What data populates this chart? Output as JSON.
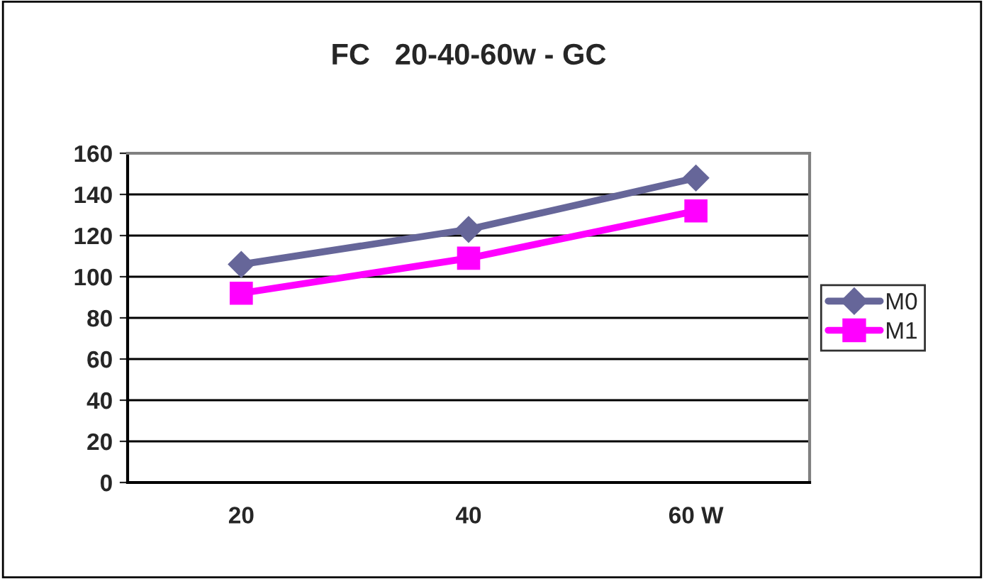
{
  "chart_data": {
    "type": "line",
    "title": "FC   20-40-60w - GC",
    "categories": [
      "20",
      "40",
      "60 W"
    ],
    "series": [
      {
        "name": "M0",
        "color": "#666699",
        "values": [
          106,
          123,
          148
        ],
        "marker": "diamond"
      },
      {
        "name": "M1",
        "color": "#ff00ff",
        "values": [
          92,
          109,
          132
        ],
        "marker": "square"
      }
    ],
    "ylim": [
      0,
      160
    ],
    "yticks": [
      0,
      20,
      40,
      60,
      80,
      100,
      120,
      140,
      160
    ],
    "grid": "y",
    "legend": "right",
    "line_style": "solid"
  }
}
